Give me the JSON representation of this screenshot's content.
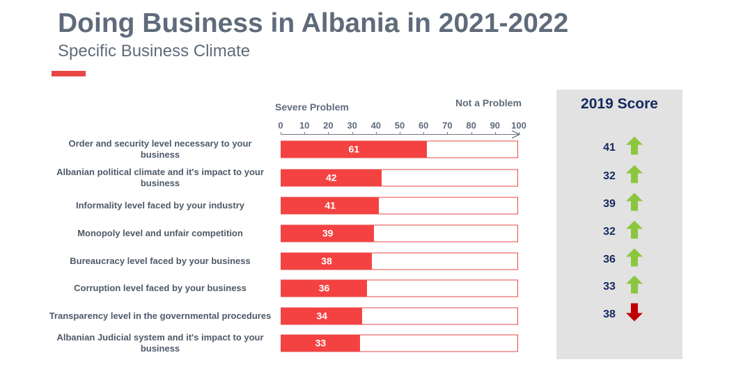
{
  "header": {
    "title": "Doing Business in Albania in 2021-2022",
    "subtitle": "Specific Business Climate"
  },
  "colors": {
    "bar": "#f44242",
    "up": "#8cc63f",
    "down": "#c00000",
    "score": "#13285e"
  },
  "chart_data": {
    "type": "bar",
    "orientation": "horizontal",
    "xlim": [
      0,
      100
    ],
    "xticks": [
      0,
      10,
      20,
      30,
      40,
      50,
      60,
      70,
      80,
      90,
      100
    ],
    "left_label": "Severe Problem",
    "right_label": "Not a Problem",
    "categories": [
      "Order and security level necessary to your business",
      "Albanian political climate and it's impact to your business",
      "Informality level faced by your industry",
      "Monopoly level and unfair competition",
      "Bureaucracy level faced by your business",
      "Corruption level faced by your business",
      "Transparency level in the governmental procedures",
      "Albanian Judicial system and it's impact to your business"
    ],
    "values": [
      61,
      42,
      41,
      39,
      38,
      36,
      34,
      33
    ]
  },
  "score_panel": {
    "title": "2019 Score",
    "scores": [
      {
        "value": "41",
        "trend": "up"
      },
      {
        "value": "32",
        "trend": "up"
      },
      {
        "value": "39",
        "trend": "up"
      },
      {
        "value": "32",
        "trend": "up"
      },
      {
        "value": "36",
        "trend": "up"
      },
      {
        "value": "33",
        "trend": "up"
      },
      {
        "value": "38",
        "trend": "down"
      }
    ]
  }
}
